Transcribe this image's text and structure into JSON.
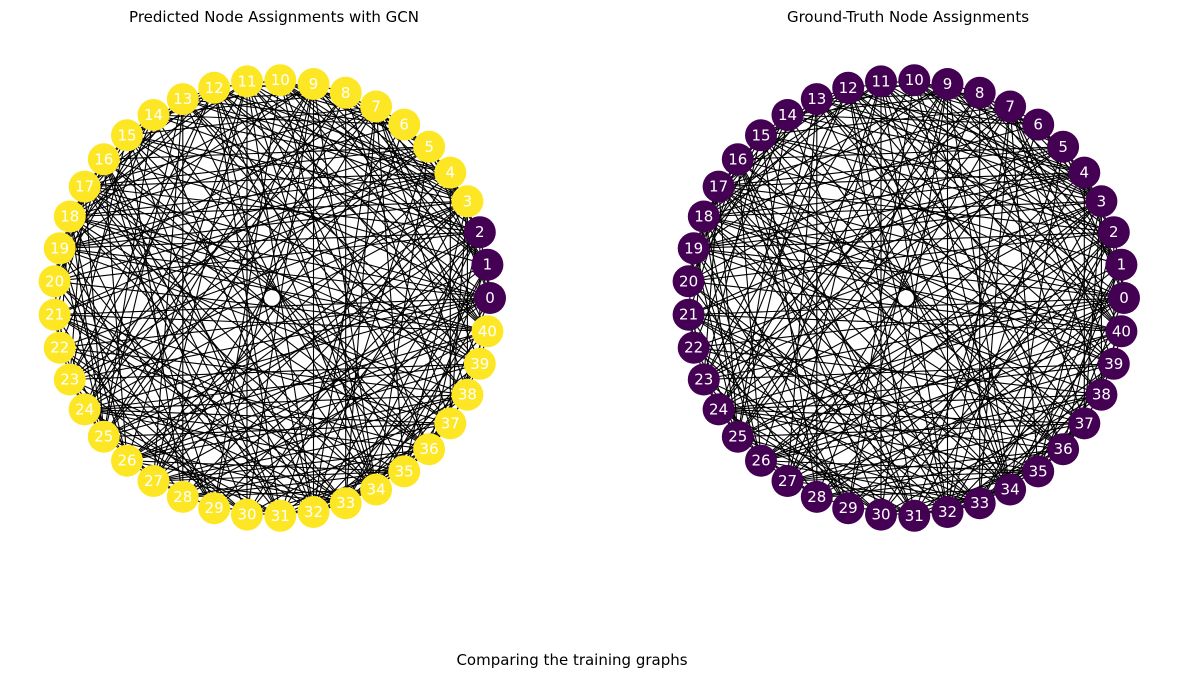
{
  "caption": "Comparing the training graphs",
  "panels": [
    {
      "title": "Predicted Node Assignments with GCN",
      "classes": {
        "0": "#440154",
        "1": "#FDE725"
      },
      "nodes": [
        {
          "id": "0",
          "class": 0
        },
        {
          "id": "1",
          "class": 0
        },
        {
          "id": "2",
          "class": 0
        },
        {
          "id": "3",
          "class": 1
        },
        {
          "id": "4",
          "class": 1
        },
        {
          "id": "5",
          "class": 1
        },
        {
          "id": "6",
          "class": 1
        },
        {
          "id": "7",
          "class": 1
        },
        {
          "id": "8",
          "class": 1
        },
        {
          "id": "9",
          "class": 1
        },
        {
          "id": "10",
          "class": 1
        },
        {
          "id": "11",
          "class": 1
        },
        {
          "id": "12",
          "class": 1
        },
        {
          "id": "13",
          "class": 1
        },
        {
          "id": "14",
          "class": 1
        },
        {
          "id": "15",
          "class": 1
        },
        {
          "id": "16",
          "class": 1
        },
        {
          "id": "17",
          "class": 1
        },
        {
          "id": "18",
          "class": 1
        },
        {
          "id": "19",
          "class": 1
        },
        {
          "id": "20",
          "class": 1
        },
        {
          "id": "21",
          "class": 1
        },
        {
          "id": "22",
          "class": 1
        },
        {
          "id": "23",
          "class": 1
        },
        {
          "id": "24",
          "class": 1
        },
        {
          "id": "25",
          "class": 1
        },
        {
          "id": "26",
          "class": 1
        },
        {
          "id": "27",
          "class": 1
        },
        {
          "id": "28",
          "class": 1
        },
        {
          "id": "29",
          "class": 1
        },
        {
          "id": "30",
          "class": 1
        },
        {
          "id": "31",
          "class": 1
        },
        {
          "id": "32",
          "class": 1
        },
        {
          "id": "33",
          "class": 1
        },
        {
          "id": "34",
          "class": 1
        },
        {
          "id": "35",
          "class": 1
        },
        {
          "id": "36",
          "class": 1
        },
        {
          "id": "37",
          "class": 1
        },
        {
          "id": "38",
          "class": 1
        },
        {
          "id": "39",
          "class": 1
        },
        {
          "id": "40",
          "class": 1
        }
      ]
    },
    {
      "title": "Ground-Truth Node Assignments",
      "classes": {
        "0": "#440154",
        "1": "#FDE725"
      },
      "nodes": [
        {
          "id": "0",
          "class": 0
        },
        {
          "id": "1",
          "class": 0
        },
        {
          "id": "2",
          "class": 0
        },
        {
          "id": "3",
          "class": 0
        },
        {
          "id": "4",
          "class": 0
        },
        {
          "id": "5",
          "class": 0
        },
        {
          "id": "6",
          "class": 0
        },
        {
          "id": "7",
          "class": 0
        },
        {
          "id": "8",
          "class": 0
        },
        {
          "id": "9",
          "class": 0
        },
        {
          "id": "10",
          "class": 0
        },
        {
          "id": "11",
          "class": 0
        },
        {
          "id": "12",
          "class": 0
        },
        {
          "id": "13",
          "class": 0
        },
        {
          "id": "14",
          "class": 0
        },
        {
          "id": "15",
          "class": 0
        },
        {
          "id": "16",
          "class": 0
        },
        {
          "id": "17",
          "class": 0
        },
        {
          "id": "18",
          "class": 0
        },
        {
          "id": "19",
          "class": 0
        },
        {
          "id": "20",
          "class": 0
        },
        {
          "id": "21",
          "class": 0
        },
        {
          "id": "22",
          "class": 0
        },
        {
          "id": "23",
          "class": 0
        },
        {
          "id": "24",
          "class": 0
        },
        {
          "id": "25",
          "class": 0
        },
        {
          "id": "26",
          "class": 0
        },
        {
          "id": "27",
          "class": 0
        },
        {
          "id": "28",
          "class": 0
        },
        {
          "id": "29",
          "class": 0
        },
        {
          "id": "30",
          "class": 0
        },
        {
          "id": "31",
          "class": 0
        },
        {
          "id": "32",
          "class": 0
        },
        {
          "id": "33",
          "class": 0
        },
        {
          "id": "34",
          "class": 0
        },
        {
          "id": "35",
          "class": 0
        },
        {
          "id": "36",
          "class": 0
        },
        {
          "id": "37",
          "class": 0
        },
        {
          "id": "38",
          "class": 0
        },
        {
          "id": "39",
          "class": 0
        },
        {
          "id": "40",
          "class": 0
        }
      ]
    }
  ]
}
